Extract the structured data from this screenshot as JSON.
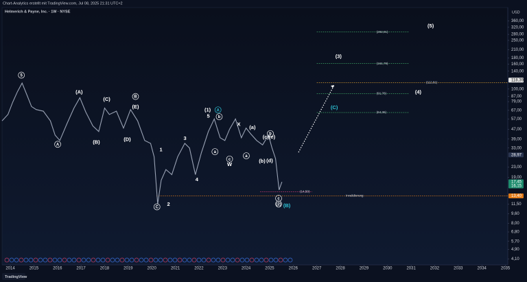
{
  "header": {
    "credit": "Chart-Analytics erstellt mit TradingView.com, Jul 08, 2025 21:31 UTC+2",
    "symbol": "Helmerich & Payne, Inc. · 1W · NYSE",
    "currency": "USD",
    "brand": "TradingView"
  },
  "chart_data": {
    "type": "line",
    "log_scale": true,
    "grid": false,
    "color": "#9aa3b5",
    "xlim": [
      2013.65,
      2035.1
    ],
    "ylim": [
      3.66,
      464
    ],
    "xticks": [
      2014,
      2015,
      2016,
      2017,
      2018,
      2019,
      2020,
      2021,
      2022,
      2023,
      2024,
      2025,
      2026,
      2027,
      2028,
      2029,
      2030,
      2031,
      2032,
      2033,
      2034,
      2035
    ],
    "yticks": [
      {
        "value": 360,
        "label": "360,00"
      },
      {
        "value": 320,
        "label": "320,00"
      },
      {
        "value": 280,
        "label": "280,00"
      },
      {
        "value": 250,
        "label": "250,00"
      },
      {
        "value": 210,
        "label": "210,00"
      },
      {
        "value": 180,
        "label": "180,00"
      },
      {
        "value": 160,
        "label": "160,00"
      },
      {
        "value": 140,
        "label": "140,00"
      },
      {
        "value": 100,
        "label": "100,00"
      },
      {
        "value": 87,
        "label": "87,00"
      },
      {
        "value": 79,
        "label": "79,00"
      },
      {
        "value": 67,
        "label": "67,00"
      },
      {
        "value": 57,
        "label": "57,00"
      },
      {
        "value": 47,
        "label": "47,00"
      },
      {
        "value": 39,
        "label": "39,00"
      },
      {
        "value": 33,
        "label": "33,00"
      },
      {
        "value": 23,
        "label": "23,00"
      },
      {
        "value": 19,
        "label": "19,00"
      },
      {
        "value": 11.5,
        "label": "11,50"
      },
      {
        "value": 9.6,
        "label": "9,60"
      },
      {
        "value": 8,
        "label": "8,00"
      },
      {
        "value": 6.8,
        "label": "6,80"
      },
      {
        "value": 5.7,
        "label": "5,70"
      },
      {
        "value": 4.9,
        "label": "4,90"
      },
      {
        "value": 4.1,
        "label": "4,10"
      }
    ],
    "price_labels": [
      {
        "value": 118.39,
        "label": "118,39",
        "color": "#e8e8e8",
        "text_color": "#101010"
      },
      {
        "value": 28.97,
        "label": "28,97",
        "color": "#2a3550",
        "text_color": "#ffffff"
      },
      {
        "value": 17.45,
        "label": "17,45",
        "color": "#1e8c6e",
        "text_color": "#ffffff"
      },
      {
        "value": 16.15,
        "label": "16,15",
        "color": "#1e8c6e",
        "text_color": "#ffffff"
      },
      {
        "value": 13.4,
        "label": "13,40",
        "color": "#e07b1a",
        "text_color": "#ffffff"
      }
    ],
    "x": [
      2013.65,
      2013.9,
      2014.1,
      2014.3,
      2014.5,
      2014.7,
      2014.9,
      2015.1,
      2015.4,
      2015.7,
      2015.9,
      2016.1,
      2016.4,
      2016.7,
      2016.95,
      2017.2,
      2017.5,
      2017.75,
      2018.0,
      2018.2,
      2018.5,
      2018.8,
      2019.1,
      2019.4,
      2019.7,
      2019.95,
      2020.1,
      2020.25,
      2020.4,
      2020.6,
      2020.85,
      2021.1,
      2021.4,
      2021.6,
      2021.85,
      2022.1,
      2022.4,
      2022.65,
      2022.9,
      2023.1,
      2023.3,
      2023.55,
      2023.8,
      2024.0,
      2024.2,
      2024.45,
      2024.7,
      2024.95,
      2025.1,
      2025.25,
      2025.4,
      2025.52
    ],
    "values": [
      55,
      62,
      78,
      95,
      112,
      90,
      72,
      68,
      66,
      55,
      42,
      38,
      52,
      70,
      85,
      65,
      50,
      45,
      70,
      62,
      66,
      48,
      68,
      55,
      38,
      36,
      28,
      11.5,
      18,
      22,
      20,
      28,
      36,
      33,
      20,
      30,
      45,
      57,
      40,
      38,
      47,
      57,
      40,
      48,
      43,
      38,
      35,
      42,
      33,
      27,
      15,
      17.45
    ],
    "levels": [
      {
        "value": 292.91,
        "label": "(292,91)",
        "from": 2027.0,
        "to": 2030.9,
        "color": "#3fae6a"
      },
      {
        "value": 161.79,
        "label": "(161,79)",
        "from": 2027.0,
        "to": 2030.9,
        "color": "#3fae6a"
      },
      {
        "value": 112.81,
        "label": "(112,81)",
        "from": 2027.0,
        "to": 2035.1,
        "color": "#e0a030"
      },
      {
        "value": 91.76,
        "label": "(91,76)",
        "from": 2027.0,
        "to": 2030.9,
        "color": "#3fae6a"
      },
      {
        "value": 64.36,
        "label": "(64,36)",
        "from": 2027.0,
        "to": 2030.9,
        "color": "#3fae6a"
      },
      {
        "value": 14.5,
        "label": "(14,50)",
        "from": 2024.6,
        "to": 2026.8,
        "color": "#e0407a"
      },
      {
        "value": 13.4,
        "label": "Invalidierung",
        "from": 2020.2,
        "to": 2035.1,
        "color": "#e07b1a"
      }
    ],
    "annotations": [
      {
        "label": "5",
        "x": 2014.47,
        "y": 130,
        "circled": true,
        "color": "#ffffff"
      },
      {
        "label": "A",
        "x": 2016.01,
        "y": 35.4,
        "circled": true,
        "color": "#ffffff"
      },
      {
        "label": "(A)",
        "x": 2016.92,
        "y": 95,
        "circled": false,
        "color": "#ffffff"
      },
      {
        "label": "(B)",
        "x": 2017.65,
        "y": 36.8,
        "circled": false,
        "color": "#ffffff"
      },
      {
        "label": "(C)",
        "x": 2018.09,
        "y": 82.8,
        "circled": false,
        "color": "#ffffff"
      },
      {
        "label": "B",
        "x": 2019.31,
        "y": 87,
        "circled": true,
        "color": "#ffffff"
      },
      {
        "label": "(E)",
        "x": 2019.31,
        "y": 72,
        "circled": false,
        "color": "#ffffff"
      },
      {
        "label": "(D)",
        "x": 2018.96,
        "y": 39,
        "circled": false,
        "color": "#ffffff"
      },
      {
        "label": "C",
        "x": 2020.22,
        "y": 10.9,
        "circled": true,
        "color": "#ffffff"
      },
      {
        "label": "1",
        "x": 2020.39,
        "y": 32,
        "circled": false,
        "color": "#ffffff"
      },
      {
        "label": "2",
        "x": 2020.71,
        "y": 11.5,
        "circled": false,
        "color": "#ffffff"
      },
      {
        "label": "3",
        "x": 2021.41,
        "y": 39.7,
        "circled": false,
        "color": "#ffffff"
      },
      {
        "label": "4",
        "x": 2021.91,
        "y": 18.3,
        "circled": false,
        "color": "#ffffff"
      },
      {
        "label": "(1)",
        "x": 2022.37,
        "y": 67.6,
        "circled": false,
        "color": "#ffffff"
      },
      {
        "label": "A",
        "x": 2022.81,
        "y": 67.6,
        "circled": true,
        "color": "#2ec4d8"
      },
      {
        "label": "5",
        "x": 2022.4,
        "y": 60.3,
        "circled": false,
        "color": "#ffffff"
      },
      {
        "label": "b",
        "x": 2022.86,
        "y": 59.5,
        "circled": true,
        "color": "#ffffff"
      },
      {
        "label": "a",
        "x": 2022.68,
        "y": 30.8,
        "circled": true,
        "color": "#ffffff"
      },
      {
        "label": "c",
        "x": 2023.3,
        "y": 26.8,
        "circled": true,
        "color": "#ffffff"
      },
      {
        "label": "W",
        "x": 2023.3,
        "y": 24.2,
        "circled": false,
        "color": "#ffffff"
      },
      {
        "label": "X",
        "x": 2023.69,
        "y": 51.8,
        "circled": false,
        "color": "#ffffff"
      },
      {
        "label": "(a)",
        "x": 2024.27,
        "y": 48.6,
        "circled": false,
        "color": "#ffffff"
      },
      {
        "label": "a",
        "x": 2024.01,
        "y": 28.5,
        "circled": true,
        "color": "#ffffff"
      },
      {
        "label": "b",
        "x": 2025.03,
        "y": 43.3,
        "circled": true,
        "color": "#ffffff"
      },
      {
        "label": "(c)(e)",
        "x": 2024.97,
        "y": 40.6,
        "circled": false,
        "color": "#ffffff"
      },
      {
        "label": "(b)",
        "x": 2024.68,
        "y": 25.8,
        "circled": false,
        "color": "#ffffff"
      },
      {
        "label": "(d)",
        "x": 2025.0,
        "y": 26,
        "circled": false,
        "color": "#ffffff"
      },
      {
        "label": "c",
        "x": 2025.38,
        "y": 12.8,
        "circled": true,
        "color": "#ffffff"
      },
      {
        "label": "(2)",
        "x": 2025.38,
        "y": 11.5,
        "circled": true,
        "color": "#ffffff"
      },
      {
        "label": "(B)",
        "x": 2025.73,
        "y": 11.2,
        "circled": false,
        "color": "#2ec4d8"
      },
      {
        "label": "(C)",
        "x": 2027.74,
        "y": 71,
        "circled": false,
        "color": "#2ec4d8"
      },
      {
        "label": "(3)",
        "x": 2027.92,
        "y": 186,
        "circled": false,
        "color": "#ffffff"
      },
      {
        "label": "(4)",
        "x": 2031.3,
        "y": 95,
        "circled": false,
        "color": "#ffffff"
      },
      {
        "label": "(5)",
        "x": 2031.83,
        "y": 330,
        "circled": false,
        "color": "#ffffff"
      }
    ]
  }
}
